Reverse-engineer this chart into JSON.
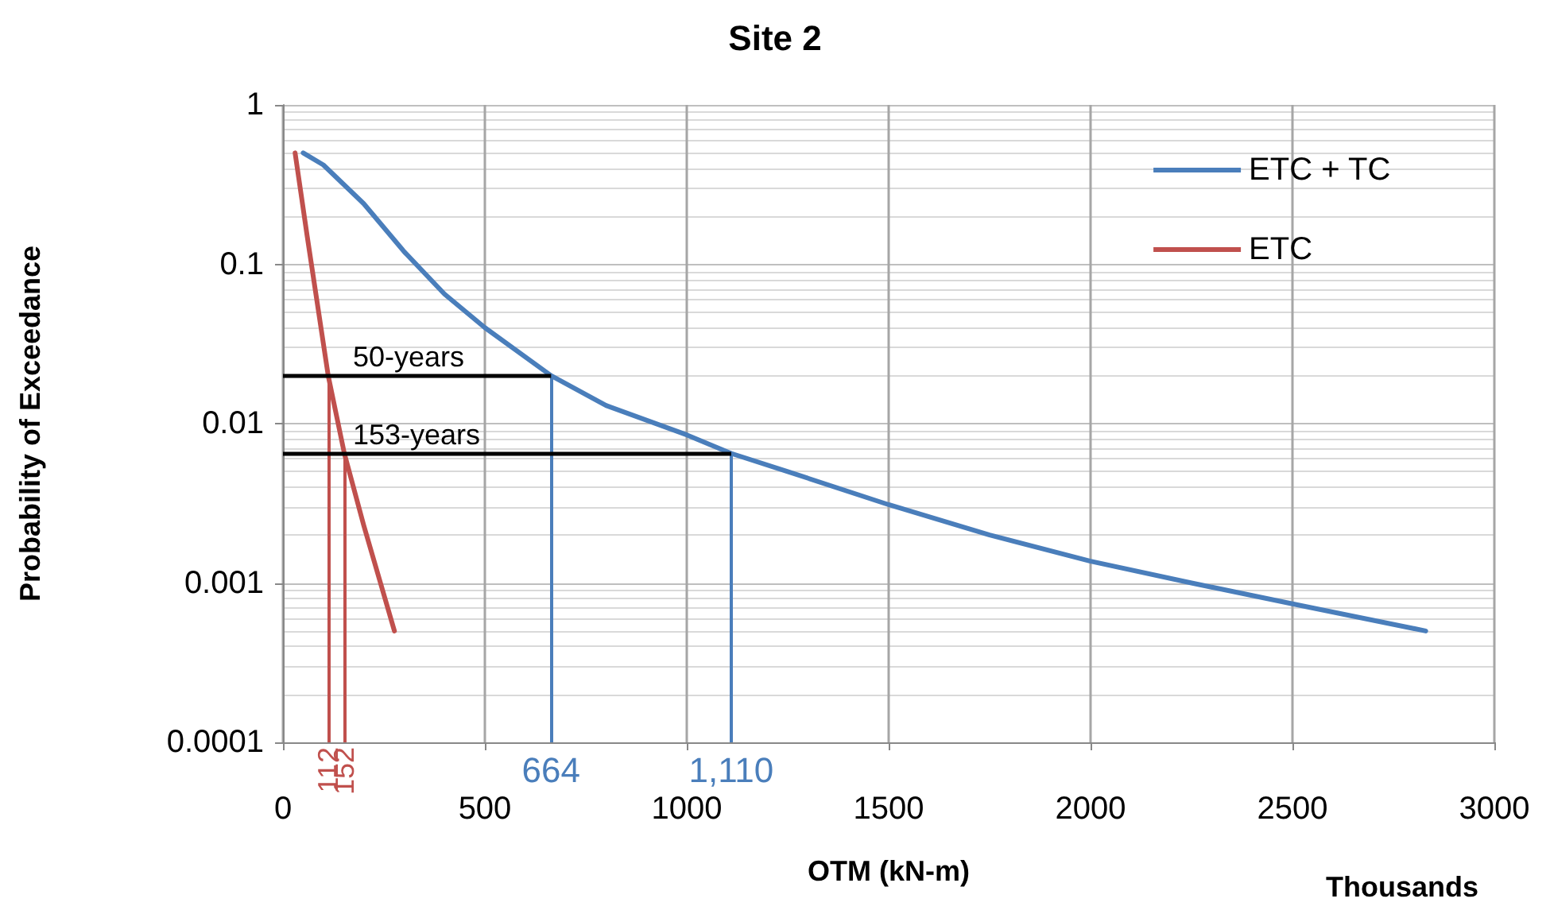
{
  "chart_data": {
    "type": "line",
    "title": "Site 2",
    "xlabel": "OTM (kN-m)",
    "ylabel": "Probability of Exceedance",
    "series": [
      {
        "name": "ETC + TC",
        "color": "#4a7ebb",
        "x": [
          50,
          100,
          200,
          300,
          400,
          500,
          664,
          800,
          1000,
          1110,
          1250,
          1500,
          1750,
          2000,
          2250,
          2500,
          2830
        ],
        "values": [
          0.5,
          0.42,
          0.24,
          0.12,
          0.065,
          0.04,
          0.02,
          0.013,
          0.0085,
          0.0065,
          0.005,
          0.0031,
          0.002,
          0.00137,
          0.001,
          0.00074,
          0.0005
        ]
      },
      {
        "name": "ETC",
        "color": "#c0504d",
        "x": [
          30,
          60,
          112,
          152,
          200,
          276
        ],
        "values": [
          0.5,
          0.15,
          0.02,
          0.0065,
          0.0023,
          0.0005
        ]
      }
    ],
    "xlim": [
      0,
      3000
    ],
    "xticks": [
      0,
      500,
      1000,
      1500,
      2000,
      2500,
      3000
    ],
    "ylim": [
      0.0001,
      1
    ],
    "yticks": [
      0.0001,
      0.001,
      0.01,
      0.1,
      1
    ],
    "log": "y",
    "grid": true,
    "legend": "top right",
    "marker": "none",
    "line_style": "solid",
    "ref_lines": [
      {
        "axis": "y",
        "value": 0.02,
        "label": "50-years",
        "color": "#000000"
      },
      {
        "axis": "y",
        "value": 0.0065,
        "label": "153-years",
        "color": "#000000"
      },
      {
        "axis": "x",
        "value": 112,
        "label": "112",
        "color": "#c0504d"
      },
      {
        "axis": "x",
        "value": 152,
        "label": "152",
        "color": "#c0504d"
      },
      {
        "axis": "x",
        "value": 664,
        "label": "664",
        "color": "#4a7ebb"
      },
      {
        "axis": "x",
        "value": 1110,
        "label": "1,110",
        "color": "#4a7ebb"
      }
    ],
    "annotations": [
      "Thousands"
    ]
  }
}
